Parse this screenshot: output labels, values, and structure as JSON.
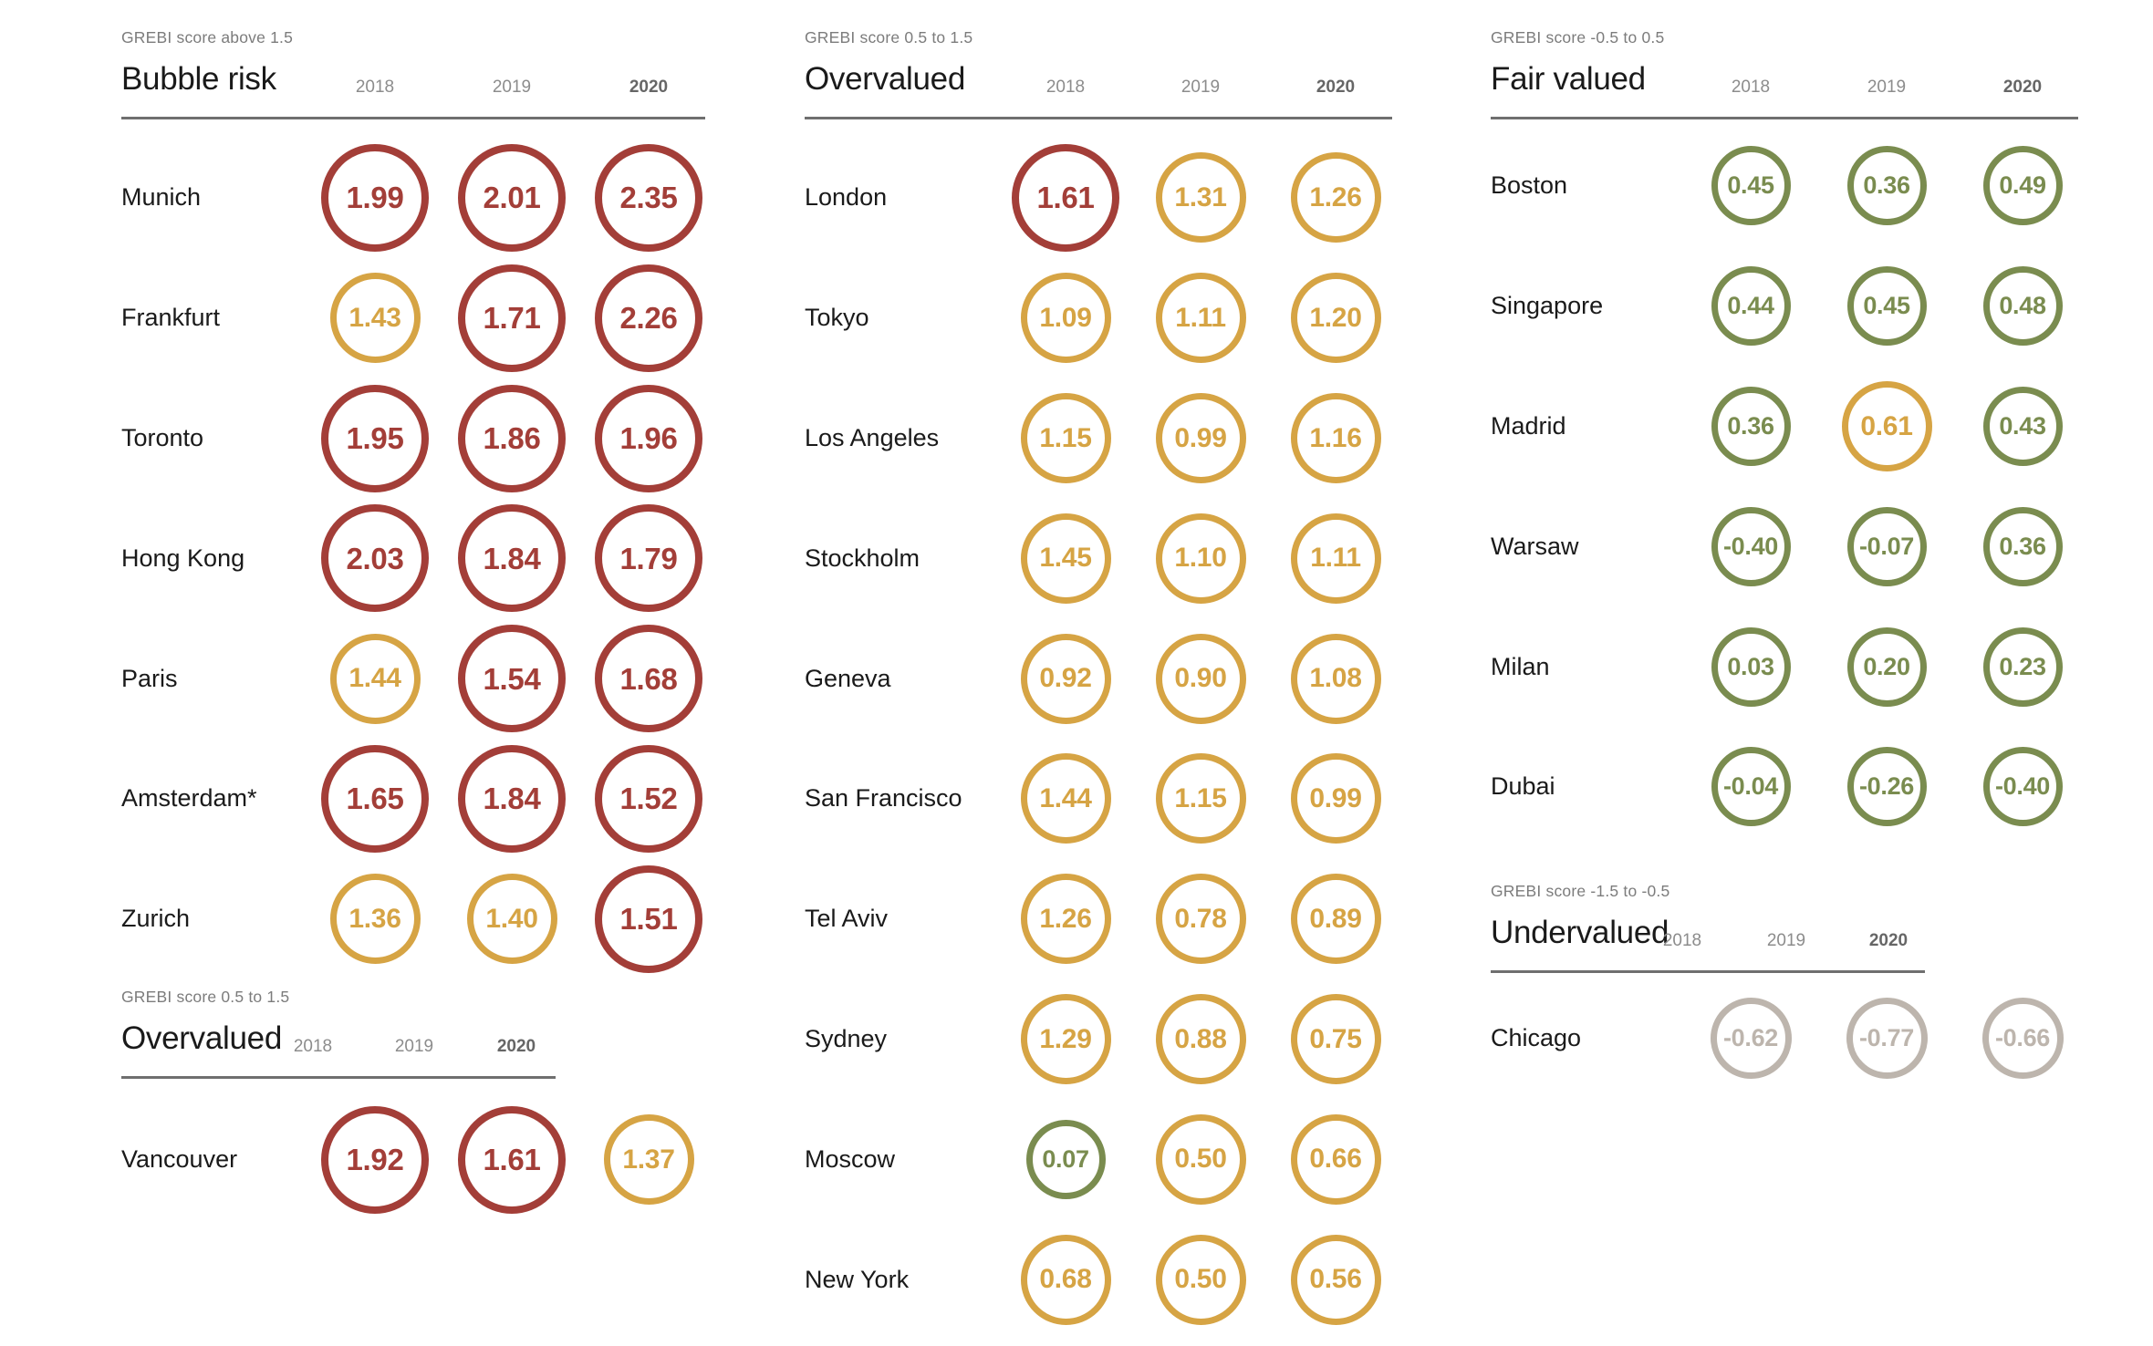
{
  "chart_data": {
    "type": "table",
    "years": [
      "2018",
      "2019",
      "2020"
    ],
    "levels_legend": [
      {
        "level": "red",
        "range_label": "GREBI score above 1.5",
        "category": "Bubble risk"
      },
      {
        "level": "yellow",
        "range_label": "GREBI score 0.5 to 1.5",
        "category": "Overvalued"
      },
      {
        "level": "green",
        "range_label": "GREBI score -0.5 to 0.5",
        "category": "Fair valued"
      },
      {
        "level": "gray",
        "range_label": "GREBI score -1.5 to -0.5",
        "category": "Undervalued"
      }
    ],
    "sections": [
      {
        "id": "bubble-risk",
        "range_label": "GREBI score above 1.5",
        "title": "Bubble risk",
        "rows": [
          {
            "city": "Munich",
            "values": [
              "1.99",
              "2.01",
              "2.35"
            ],
            "levels": [
              "red",
              "red",
              "red"
            ]
          },
          {
            "city": "Frankfurt",
            "values": [
              "1.43",
              "1.71",
              "2.26"
            ],
            "levels": [
              "yellow",
              "red",
              "red"
            ]
          },
          {
            "city": "Toronto",
            "values": [
              "1.95",
              "1.86",
              "1.96"
            ],
            "levels": [
              "red",
              "red",
              "red"
            ]
          },
          {
            "city": "Hong Kong",
            "values": [
              "2.03",
              "1.84",
              "1.79"
            ],
            "levels": [
              "red",
              "red",
              "red"
            ]
          },
          {
            "city": "Paris",
            "values": [
              "1.44",
              "1.54",
              "1.68"
            ],
            "levels": [
              "yellow",
              "red",
              "red"
            ]
          },
          {
            "city": "Amsterdam*",
            "values": [
              "1.65",
              "1.84",
              "1.52"
            ],
            "levels": [
              "red",
              "red",
              "red"
            ]
          },
          {
            "city": "Zurich",
            "values": [
              "1.36",
              "1.40",
              "1.51"
            ],
            "levels": [
              "yellow",
              "yellow",
              "red"
            ]
          }
        ]
      },
      {
        "id": "overvalued-left",
        "range_label": "GREBI score 0.5 to 1.5",
        "title": "Overvalued",
        "rows": [
          {
            "city": "Vancouver",
            "values": [
              "1.92",
              "1.61",
              "1.37"
            ],
            "levels": [
              "red",
              "red",
              "yellow"
            ]
          }
        ]
      },
      {
        "id": "overvalued-mid",
        "range_label": "GREBI score 0.5 to 1.5",
        "title": "Overvalued",
        "rows": [
          {
            "city": "London",
            "values": [
              "1.61",
              "1.31",
              "1.26"
            ],
            "levels": [
              "red",
              "yellow",
              "yellow"
            ]
          },
          {
            "city": "Tokyo",
            "values": [
              "1.09",
              "1.11",
              "1.20"
            ],
            "levels": [
              "yellow",
              "yellow",
              "yellow"
            ]
          },
          {
            "city": "Los Angeles",
            "values": [
              "1.15",
              "0.99",
              "1.16"
            ],
            "levels": [
              "yellow",
              "yellow",
              "yellow"
            ]
          },
          {
            "city": "Stockholm",
            "values": [
              "1.45",
              "1.10",
              "1.11"
            ],
            "levels": [
              "yellow",
              "yellow",
              "yellow"
            ]
          },
          {
            "city": "Geneva",
            "values": [
              "0.92",
              "0.90",
              "1.08"
            ],
            "levels": [
              "yellow",
              "yellow",
              "yellow"
            ]
          },
          {
            "city": "San Francisco",
            "values": [
              "1.44",
              "1.15",
              "0.99"
            ],
            "levels": [
              "yellow",
              "yellow",
              "yellow"
            ]
          },
          {
            "city": "Tel Aviv",
            "values": [
              "1.26",
              "0.78",
              "0.89"
            ],
            "levels": [
              "yellow",
              "yellow",
              "yellow"
            ]
          },
          {
            "city": "Sydney",
            "values": [
              "1.29",
              "0.88",
              "0.75"
            ],
            "levels": [
              "yellow",
              "yellow",
              "yellow"
            ]
          },
          {
            "city": "Moscow",
            "values": [
              "0.07",
              "0.50",
              "0.66"
            ],
            "levels": [
              "green",
              "yellow",
              "yellow"
            ]
          },
          {
            "city": "New York",
            "values": [
              "0.68",
              "0.50",
              "0.56"
            ],
            "levels": [
              "yellow",
              "yellow",
              "yellow"
            ]
          }
        ]
      },
      {
        "id": "fair-valued",
        "range_label": "GREBI score -0.5 to 0.5",
        "title": "Fair valued",
        "rows": [
          {
            "city": "Boston",
            "values": [
              "0.45",
              "0.36",
              "0.49"
            ],
            "levels": [
              "green",
              "green",
              "green"
            ]
          },
          {
            "city": "Singapore",
            "values": [
              "0.44",
              "0.45",
              "0.48"
            ],
            "levels": [
              "green",
              "green",
              "green"
            ]
          },
          {
            "city": "Madrid",
            "values": [
              "0.36",
              "0.61",
              "0.43"
            ],
            "levels": [
              "green",
              "yellow",
              "green"
            ]
          },
          {
            "city": "Warsaw",
            "values": [
              "-0.40",
              "-0.07",
              "0.36"
            ],
            "levels": [
              "green",
              "green",
              "green"
            ]
          },
          {
            "city": "Milan",
            "values": [
              "0.03",
              "0.20",
              "0.23"
            ],
            "levels": [
              "green",
              "green",
              "green"
            ]
          },
          {
            "city": "Dubai",
            "values": [
              "-0.04",
              "-0.26",
              "-0.40"
            ],
            "levels": [
              "green",
              "green",
              "green"
            ]
          }
        ]
      },
      {
        "id": "undervalued",
        "range_label": "GREBI score -1.5 to -0.5",
        "title": "Undervalued",
        "rows": [
          {
            "city": "Chicago",
            "values": [
              "-0.62",
              "-0.77",
              "-0.66"
            ],
            "levels": [
              "gray",
              "gray",
              "gray"
            ]
          }
        ]
      }
    ]
  },
  "colors": {
    "red": "#A33E38",
    "yellow": "#D6A444",
    "green": "#7A8C4F",
    "gray": "#BDB5AD",
    "text": "#1A1A1A",
    "muted_text": "#7C7C7C",
    "year_text": "#8C8C8C",
    "year_text_emphasis": "#666666",
    "rule": "#6F6F6F"
  }
}
